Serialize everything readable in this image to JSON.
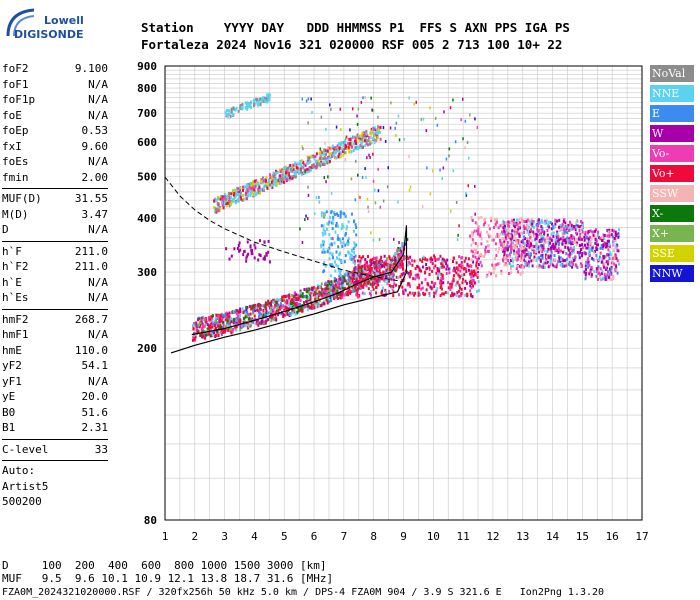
{
  "logo": {
    "line1": "Lowell",
    "line2": "DIGISONDE"
  },
  "header": {
    "row1": "Station    YYYY DAY   DDD HHMMSS P1  FFS S AXN PPS IGA PS",
    "row2": "Fortaleza 2024 Nov16 321 020000 RSF 005 2 713 100 10+ 22"
  },
  "params": {
    "group1": [
      {
        "k": "foF2",
        "v": "9.100"
      },
      {
        "k": "foF1",
        "v": "N/A"
      },
      {
        "k": "foF1p",
        "v": "N/A"
      },
      {
        "k": "foE",
        "v": "N/A"
      },
      {
        "k": "foEp",
        "v": "0.53"
      },
      {
        "k": "fxI",
        "v": "9.60"
      },
      {
        "k": "foEs",
        "v": "N/A"
      },
      {
        "k": "fmin",
        "v": "2.00"
      }
    ],
    "group2": [
      {
        "k": "MUF(D)",
        "v": "31.55"
      },
      {
        "k": "M(D)",
        "v": "3.47"
      },
      {
        "k": "D",
        "v": "N/A"
      }
    ],
    "group3": [
      {
        "k": "h`F",
        "v": "211.0"
      },
      {
        "k": "h`F2",
        "v": "211.0"
      },
      {
        "k": "h`E",
        "v": "N/A"
      },
      {
        "k": "h`Es",
        "v": "N/A"
      }
    ],
    "group4": [
      {
        "k": "hmF2",
        "v": "268.7"
      },
      {
        "k": "hmF1",
        "v": "N/A"
      },
      {
        "k": "hmE",
        "v": "110.0"
      },
      {
        "k": "yF2",
        "v": "54.1"
      },
      {
        "k": "yF1",
        "v": "N/A"
      },
      {
        "k": "yE",
        "v": "20.0"
      },
      {
        "k": "B0",
        "v": "51.6"
      },
      {
        "k": "B1",
        "v": "2.31"
      }
    ],
    "clevel": {
      "k": "C-level",
      "v": "33"
    },
    "auto": [
      "Auto:",
      "Artist5",
      "500200"
    ]
  },
  "legend": [
    {
      "label": "NoVal",
      "color": "#8c8c8c"
    },
    {
      "label": "NNE",
      "color": "#5ad2f0"
    },
    {
      "label": "E",
      "color": "#3c8cf0"
    },
    {
      "label": "W",
      "color": "#a800a8"
    },
    {
      "label": "Vo-",
      "color": "#f03cb4"
    },
    {
      "label": "Vo+",
      "color": "#f00a3c"
    },
    {
      "label": "SSW",
      "color": "#f5b4b4"
    },
    {
      "label": "X-",
      "color": "#0a780a"
    },
    {
      "label": "X+",
      "color": "#78b450"
    },
    {
      "label": "SSE",
      "color": "#d2d200"
    },
    {
      "label": "NNW",
      "color": "#1414d2"
    }
  ],
  "footer": {
    "line1": "D     100  200  400  600  800 1000 1500 3000 [km]",
    "line2": "MUF   9.5  9.6 10.1 10.9 12.1 13.8 18.7 31.6 [MHz]",
    "line3": "FZA0M_2024321020000.RSF / 320fx256h 50 kHz 5.0 km / DPS-4 FZA0M 904 / 3.9 S 321.6 E   Ion2Png 1.3.20"
  },
  "chart_data": {
    "type": "scatter",
    "x_ticks": [
      "1",
      "2",
      "3",
      "4",
      "5",
      "6",
      "7",
      "8",
      "9",
      "10",
      "11",
      "12",
      "13",
      "14",
      "15",
      "16",
      "17"
    ],
    "y_ticks": [
      "80",
      "200",
      "300",
      "400",
      "500",
      "600",
      "700",
      "800",
      "900"
    ],
    "xlim": [
      1,
      17
    ],
    "ylim": [
      80,
      900
    ],
    "yscale": "log",
    "grid": true,
    "legend_position": "right",
    "ordinary_trace": [
      [
        1.9,
        215
      ],
      [
        3,
        222
      ],
      [
        4,
        232
      ],
      [
        5,
        243
      ],
      [
        6,
        256
      ],
      [
        6.8,
        268
      ],
      [
        7.5,
        283
      ],
      [
        8,
        292
      ],
      [
        8.6,
        300
      ],
      [
        9,
        330
      ],
      [
        9.1,
        385
      ]
    ],
    "profile_solid": [
      [
        1.2,
        195
      ],
      [
        2,
        203
      ],
      [
        3,
        212
      ],
      [
        4,
        220
      ],
      [
        5,
        230
      ],
      [
        6,
        240
      ],
      [
        7,
        252
      ],
      [
        8,
        262
      ],
      [
        8.8,
        270
      ],
      [
        9.1,
        300
      ],
      [
        9.1,
        380
      ]
    ],
    "profile_dashed": [
      [
        1,
        498
      ],
      [
        1.5,
        450
      ],
      [
        2,
        418
      ],
      [
        2.5,
        395
      ],
      [
        3,
        378
      ],
      [
        4,
        352
      ],
      [
        5,
        334
      ],
      [
        6,
        318
      ],
      [
        7,
        303
      ],
      [
        8,
        293
      ],
      [
        9,
        285
      ]
    ]
  }
}
